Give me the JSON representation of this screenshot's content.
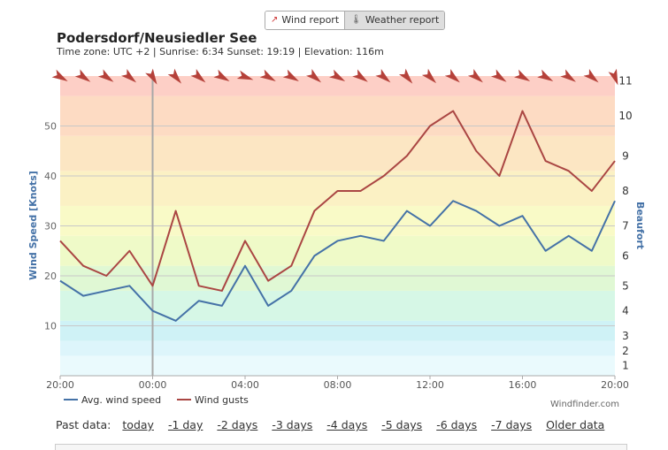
{
  "tabs": [
    {
      "label": "Wind report",
      "icon": "wind-chart-icon"
    },
    {
      "label": "Weather report",
      "icon": "thermometer-icon"
    }
  ],
  "header": {
    "title": "Podersdorf/Neusiedler See",
    "subtitle": "Time zone: UTC +2 | Sunrise: 6:34 Sunset: 19:19 | Elevation: 116m"
  },
  "chart_data": {
    "type": "line",
    "ylabel": "Wind Speed [Knots]",
    "y2label": "Beaufort",
    "ylim": [
      0,
      60
    ],
    "yticks": [
      10,
      20,
      30,
      40,
      50
    ],
    "beaufort_ticks": [
      {
        "label": "1",
        "knots": 2
      },
      {
        "label": "2",
        "knots": 5
      },
      {
        "label": "3",
        "knots": 8
      },
      {
        "label": "4",
        "knots": 13
      },
      {
        "label": "5",
        "knots": 18
      },
      {
        "label": "6",
        "knots": 24
      },
      {
        "label": "7",
        "knots": 30
      },
      {
        "label": "8",
        "knots": 37
      },
      {
        "label": "9",
        "knots": 44
      },
      {
        "label": "10",
        "knots": 52
      },
      {
        "label": "11",
        "knots": 59
      }
    ],
    "bands": [
      {
        "from": 0,
        "to": 4,
        "color": "#eafafd"
      },
      {
        "from": 4,
        "to": 7,
        "color": "#ddf5fb"
      },
      {
        "from": 7,
        "to": 11,
        "color": "#cff2f6"
      },
      {
        "from": 11,
        "to": 17,
        "color": "#d6f7e6"
      },
      {
        "from": 17,
        "to": 22,
        "color": "#e0f8d4"
      },
      {
        "from": 22,
        "to": 28,
        "color": "#effac8"
      },
      {
        "from": 28,
        "to": 34,
        "color": "#f9fac7"
      },
      {
        "from": 34,
        "to": 41,
        "color": "#fbf1c4"
      },
      {
        "from": 41,
        "to": 48,
        "color": "#fce6c3"
      },
      {
        "from": 48,
        "to": 56,
        "color": "#fddbc3"
      },
      {
        "from": 56,
        "to": 64,
        "color": "#fdcfc6"
      }
    ],
    "xticks": [
      "20:00",
      "00:00",
      "04:00",
      "08:00",
      "12:00",
      "16:00",
      "20:00"
    ],
    "x_range_hours": [
      0,
      24
    ],
    "midnight_marker_hour": 4,
    "x": [
      0,
      1,
      2,
      3,
      4,
      5,
      6,
      7,
      8,
      9,
      10,
      11,
      12,
      13,
      14,
      15,
      16,
      17,
      18,
      19,
      20,
      21,
      22,
      23,
      24
    ],
    "series": [
      {
        "name": "Avg. wind speed",
        "color": "#4572a7",
        "values": [
          19,
          16,
          17,
          18,
          13,
          11,
          15,
          14,
          22,
          14,
          17,
          24,
          27,
          28,
          27,
          33,
          30,
          35,
          33,
          30,
          32,
          25,
          28,
          25,
          35
        ]
      },
      {
        "name": "Wind gusts",
        "color": "#aa4643",
        "values": [
          27,
          22,
          20,
          25,
          18,
          33,
          18,
          17,
          27,
          19,
          22,
          33,
          37,
          37,
          40,
          44,
          50,
          53,
          45,
          40,
          53,
          43,
          41,
          37,
          43
        ]
      }
    ],
    "direction_arrows_deg": [
      300,
      305,
      305,
      310,
      330,
      320,
      310,
      300,
      290,
      300,
      300,
      310,
      300,
      305,
      310,
      320,
      315,
      310,
      310,
      305,
      300,
      300,
      305,
      310,
      340
    ],
    "credit": "Windfinder.com"
  },
  "footer": {
    "past_label": "Past data:",
    "links": [
      "today",
      "-1 day",
      "-2 days",
      "-3 days",
      "-4 days",
      "-5 days",
      "-6 days",
      "-7 days",
      "Older data"
    ]
  }
}
